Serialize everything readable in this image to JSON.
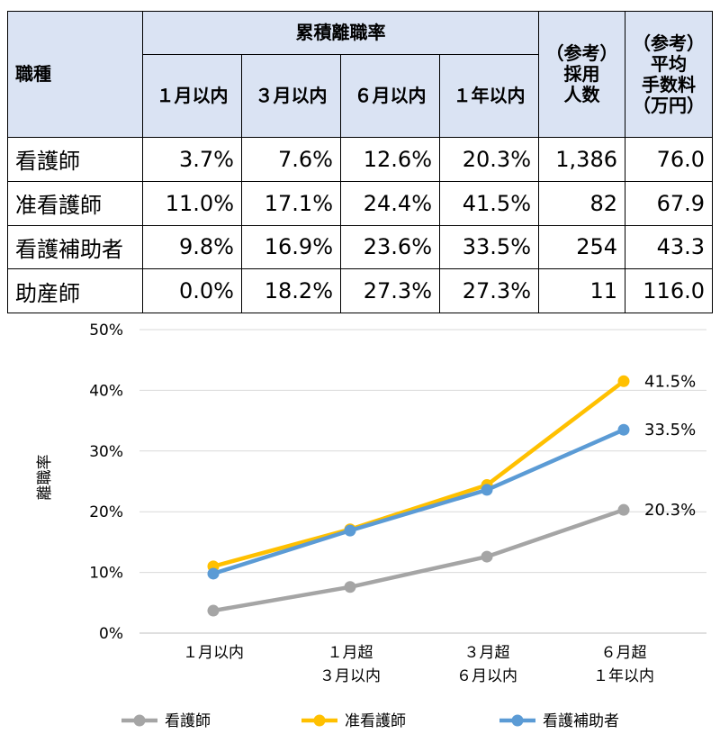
{
  "table": {
    "role_header": "職種",
    "cumulative_header": "累積離職率",
    "period_headers": [
      "１月以内",
      "３月以内",
      "６月以内",
      "１年以内"
    ],
    "hires_header": [
      "（参考）",
      "採用",
      "人数"
    ],
    "fee_header": [
      "（参考）",
      "平均",
      "手数料",
      "（万円）"
    ],
    "rows": [
      {
        "role": "看護師",
        "rates": [
          "3.7%",
          "7.6%",
          "12.6%",
          "20.3%"
        ],
        "hires": "1,386",
        "fee": "76.0"
      },
      {
        "role": "准看護師",
        "rates": [
          "11.0%",
          "17.1%",
          "24.4%",
          "41.5%"
        ],
        "hires": "82",
        "fee": "67.9"
      },
      {
        "role": "看護補助者",
        "rates": [
          "9.8%",
          "16.9%",
          "23.6%",
          "33.5%"
        ],
        "hires": "254",
        "fee": "43.3"
      },
      {
        "role": "助産師",
        "rates": [
          "0.0%",
          "18.2%",
          "27.3%",
          "27.3%"
        ],
        "hires": "11",
        "fee": "116.0"
      }
    ]
  },
  "chart_data": {
    "type": "line",
    "ylabel": "離職率",
    "categories": [
      [
        "１月以内"
      ],
      [
        "１月超",
        "３月以内"
      ],
      [
        "３月超",
        "６月以内"
      ],
      [
        "６月超",
        "１年以内"
      ]
    ],
    "yticks": [
      "0%",
      "10%",
      "20%",
      "30%",
      "40%",
      "50%"
    ],
    "ylim": [
      0,
      50
    ],
    "grid": true,
    "legend_position": "bottom",
    "series": [
      {
        "name": "看護師",
        "color": "#a5a5a5",
        "values": [
          3.7,
          7.6,
          12.6,
          20.3
        ],
        "end_label": "20.3%"
      },
      {
        "name": "准看護師",
        "color": "#ffc000",
        "values": [
          11.0,
          17.1,
          24.4,
          41.5
        ],
        "end_label": "41.5%"
      },
      {
        "name": "看護補助者",
        "color": "#5b9bd5",
        "values": [
          9.8,
          16.9,
          23.6,
          33.5
        ],
        "end_label": "33.5%"
      }
    ]
  }
}
